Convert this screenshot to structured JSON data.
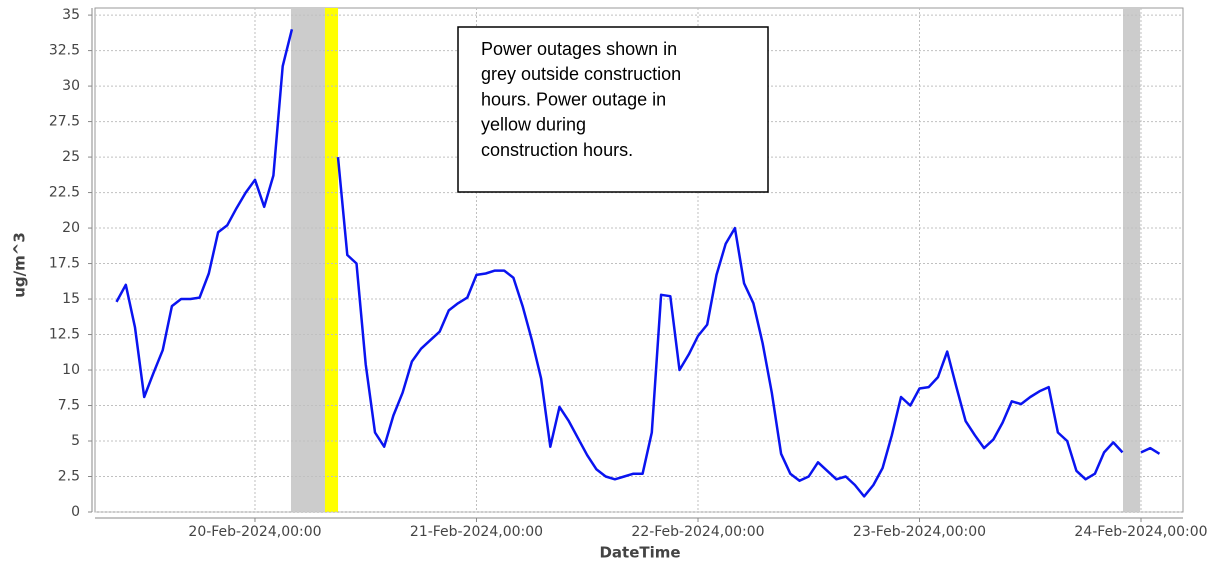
{
  "chart_data": {
    "type": "line",
    "annotation": [
      "Power outages shown in",
      "grey outside construction",
      "hours. Power outage in",
      "yellow during",
      "construction hours."
    ],
    "xlabel": "DateTime",
    "ylabel": "ug/m^3",
    "x": [
      "19-Feb-2024,09:00",
      "19-Feb-2024,10:00",
      "19-Feb-2024,11:00",
      "19-Feb-2024,12:00",
      "19-Feb-2024,13:00",
      "19-Feb-2024,14:00",
      "19-Feb-2024,15:00",
      "19-Feb-2024,16:00",
      "19-Feb-2024,17:00",
      "19-Feb-2024,18:00",
      "19-Feb-2024,19:00",
      "19-Feb-2024,20:00",
      "19-Feb-2024,21:00",
      "19-Feb-2024,22:00",
      "19-Feb-2024,23:00",
      "20-Feb-2024,00:00",
      "20-Feb-2024,01:00",
      "20-Feb-2024,02:00",
      "20-Feb-2024,03:00",
      "20-Feb-2024,04:00",
      "20-Feb-2024,05:00",
      "20-Feb-2024,06:00",
      "20-Feb-2024,07:00",
      "20-Feb-2024,08:00",
      "20-Feb-2024,09:00",
      "20-Feb-2024,10:00",
      "20-Feb-2024,11:00",
      "20-Feb-2024,12:00",
      "20-Feb-2024,13:00",
      "20-Feb-2024,14:00",
      "20-Feb-2024,15:00",
      "20-Feb-2024,16:00",
      "20-Feb-2024,17:00",
      "20-Feb-2024,18:00",
      "20-Feb-2024,19:00",
      "20-Feb-2024,20:00",
      "20-Feb-2024,21:00",
      "20-Feb-2024,22:00",
      "20-Feb-2024,23:00",
      "21-Feb-2024,00:00",
      "21-Feb-2024,01:00",
      "21-Feb-2024,02:00",
      "21-Feb-2024,03:00",
      "21-Feb-2024,04:00",
      "21-Feb-2024,05:00",
      "21-Feb-2024,06:00",
      "21-Feb-2024,07:00",
      "21-Feb-2024,08:00",
      "21-Feb-2024,09:00",
      "21-Feb-2024,10:00",
      "21-Feb-2024,11:00",
      "21-Feb-2024,12:00",
      "21-Feb-2024,13:00",
      "21-Feb-2024,14:00",
      "21-Feb-2024,15:00",
      "21-Feb-2024,16:00",
      "21-Feb-2024,17:00",
      "21-Feb-2024,18:00",
      "21-Feb-2024,19:00",
      "21-Feb-2024,20:00",
      "21-Feb-2024,21:00",
      "21-Feb-2024,22:00",
      "21-Feb-2024,23:00",
      "22-Feb-2024,00:00",
      "22-Feb-2024,01:00",
      "22-Feb-2024,02:00",
      "22-Feb-2024,03:00",
      "22-Feb-2024,04:00",
      "22-Feb-2024,05:00",
      "22-Feb-2024,06:00",
      "22-Feb-2024,07:00",
      "22-Feb-2024,08:00",
      "22-Feb-2024,09:00",
      "22-Feb-2024,10:00",
      "22-Feb-2024,11:00",
      "22-Feb-2024,12:00",
      "22-Feb-2024,13:00",
      "22-Feb-2024,14:00",
      "22-Feb-2024,15:00",
      "22-Feb-2024,16:00",
      "22-Feb-2024,17:00",
      "22-Feb-2024,18:00",
      "22-Feb-2024,19:00",
      "22-Feb-2024,20:00",
      "22-Feb-2024,21:00",
      "22-Feb-2024,22:00",
      "22-Feb-2024,23:00",
      "23-Feb-2024,00:00",
      "23-Feb-2024,01:00",
      "23-Feb-2024,02:00",
      "23-Feb-2024,03:00",
      "23-Feb-2024,04:00",
      "23-Feb-2024,05:00",
      "23-Feb-2024,06:00",
      "23-Feb-2024,07:00",
      "23-Feb-2024,08:00",
      "23-Feb-2024,09:00",
      "23-Feb-2024,10:00",
      "23-Feb-2024,11:00",
      "23-Feb-2024,12:00",
      "23-Feb-2024,13:00",
      "23-Feb-2024,14:00",
      "23-Feb-2024,15:00",
      "23-Feb-2024,16:00",
      "23-Feb-2024,17:00",
      "23-Feb-2024,18:00",
      "23-Feb-2024,19:00",
      "23-Feb-2024,20:00",
      "23-Feb-2024,21:00",
      "23-Feb-2024,22:00",
      "23-Feb-2024,23:00",
      "24-Feb-2024,00:00",
      "24-Feb-2024,01:00",
      "24-Feb-2024,02:00"
    ],
    "series": [
      {
        "color": "#0a14f0",
        "values": [
          14.8,
          16.0,
          13.0,
          8.1,
          9.8,
          11.4,
          14.5,
          15.0,
          15.0,
          15.1,
          16.8,
          19.7,
          20.2,
          21.4,
          22.5,
          23.4,
          21.5,
          23.7,
          31.4,
          34.0,
          null,
          null,
          null,
          null,
          25.0,
          18.1,
          17.5,
          10.4,
          5.6,
          4.6,
          6.8,
          8.4,
          10.6,
          11.5,
          12.1,
          12.7,
          14.2,
          14.7,
          15.1,
          16.7,
          16.8,
          17.0,
          17.0,
          16.5,
          14.5,
          12.1,
          9.4,
          4.6,
          7.4,
          6.4,
          5.2,
          4.0,
          3.0,
          2.5,
          2.3,
          2.5,
          2.7,
          2.7,
          5.6,
          15.3,
          15.2,
          10.0,
          11.1,
          12.4,
          13.2,
          16.7,
          18.9,
          20.0,
          16.1,
          14.7,
          11.9,
          8.4,
          4.1,
          2.7,
          2.2,
          2.5,
          3.5,
          2.9,
          2.3,
          2.5,
          1.9,
          1.1,
          1.9,
          3.1,
          5.4,
          8.1,
          7.5,
          8.7,
          8.8,
          9.5,
          11.3,
          8.8,
          6.4,
          5.4,
          4.5,
          5.1,
          6.3,
          7.8,
          7.6,
          8.1,
          8.5,
          8.8,
          5.6,
          5.0,
          2.9,
          2.3,
          2.7,
          4.2,
          4.9,
          4.2,
          null,
          4.2,
          4.5,
          4.1
        ]
      }
    ],
    "outages": [
      {
        "start": "20-Feb-2024,03:54",
        "end": "20-Feb-2024,07:35",
        "color": "#cccccc"
      },
      {
        "start": "20-Feb-2024,07:35",
        "end": "20-Feb-2024,09:00",
        "color": "#ffff00"
      },
      {
        "start": "23-Feb-2024,22:03",
        "end": "23-Feb-2024,23:54",
        "color": "#cccccc"
      }
    ],
    "xlim": [
      "19-Feb-2024,06:40",
      "24-Feb-2024,04:33"
    ],
    "xticks": [
      "20-Feb-2024,00:00",
      "21-Feb-2024,00:00",
      "22-Feb-2024,00:00",
      "23-Feb-2024,00:00",
      "24-Feb-2024,00:00"
    ],
    "ylim": [
      0,
      35.5
    ],
    "yticks": [
      0,
      2.5,
      5,
      7.5,
      10,
      12.5,
      15,
      17.5,
      20,
      22.5,
      25,
      27.5,
      30,
      32.5,
      35
    ],
    "grid": true
  }
}
